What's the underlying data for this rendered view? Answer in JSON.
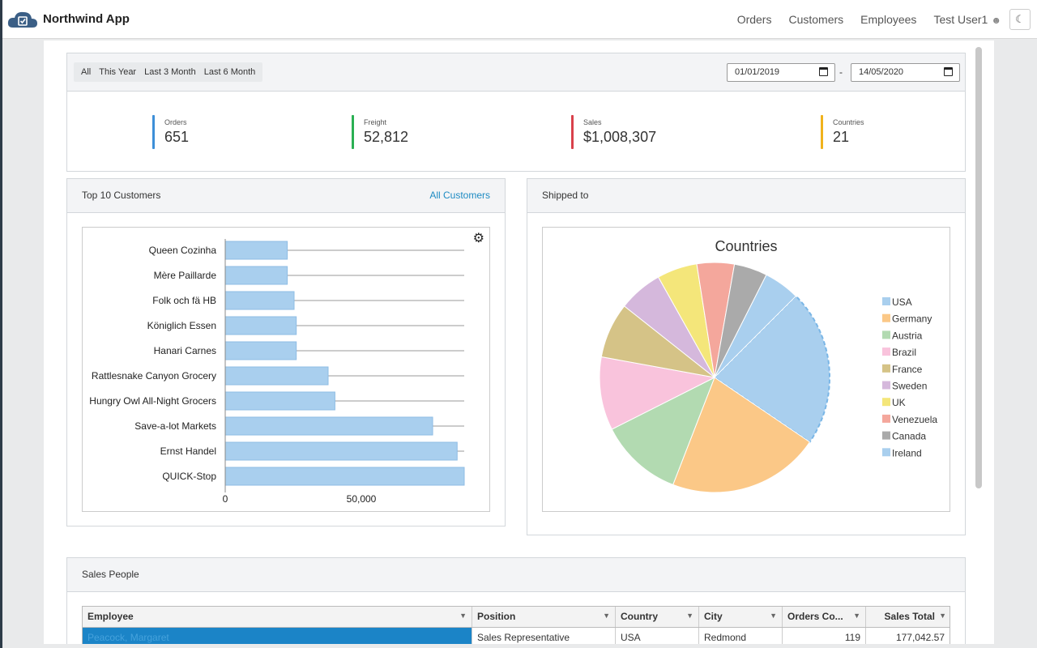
{
  "app": {
    "name": "Northwind App"
  },
  "nav": {
    "orders": "Orders",
    "customers": "Customers",
    "employees": "Employees",
    "user": "Test User1"
  },
  "filters": {
    "ranges": [
      "All",
      "This Year",
      "Last 3 Month",
      "Last 6 Month"
    ],
    "date_from": "01/01/2019",
    "date_to": "14/05/2020",
    "separator": "-"
  },
  "stats": [
    {
      "label": "Orders",
      "value": "651",
      "color": "#3d8fd8"
    },
    {
      "label": "Freight",
      "value": "52,812",
      "color": "#2bb053"
    },
    {
      "label": "Sales",
      "value": "$1,008,307",
      "color": "#d9414b"
    },
    {
      "label": "Countries",
      "value": "21",
      "color": "#f0b21c"
    }
  ],
  "top_customers": {
    "title": "Top 10 Customers",
    "link": "All Customers"
  },
  "shipped": {
    "title": "Shipped to"
  },
  "sales_people": {
    "title": "Sales People",
    "columns": [
      "Employee",
      "Position",
      "Country",
      "City",
      "Orders Co...",
      "Sales Total"
    ],
    "rows": [
      [
        "Peacock, Margaret",
        "Sales Representative",
        "USA",
        "Redmond",
        "119",
        "177,042.57"
      ]
    ]
  },
  "chart_data": [
    {
      "type": "bar",
      "orientation": "horizontal",
      "categories": [
        "Queen Cozinha",
        "Mère Paillarde",
        "Folk och fä HB",
        "Königlich Essen",
        "Hanari Carnes",
        "Rattlesnake Canyon Grocery",
        "Hungry Owl All-Night Grocers",
        "Save-a-lot Markets",
        "Ernst Handel",
        "QUICK-Stop"
      ],
      "values": [
        22800,
        22800,
        25300,
        26100,
        26100,
        37800,
        40300,
        76200,
        85200,
        87800
      ],
      "xlim": [
        0,
        87800
      ],
      "xticks": [
        "0",
        "50,000"
      ],
      "color": "#a9cfee",
      "grid": true
    },
    {
      "type": "pie",
      "title": "Countries",
      "labels": [
        "USA",
        "Germany",
        "Austria",
        "Brazil",
        "France",
        "Sweden",
        "UK",
        "Venezuela",
        "Canada",
        "Ireland"
      ],
      "values": [
        113,
        110,
        60,
        53,
        40,
        32,
        29,
        27,
        24,
        26
      ],
      "colors": [
        "#a9cfee",
        "#fbc887",
        "#b2dab1",
        "#f9c3dc",
        "#d5c387",
        "#d5b8dc",
        "#f4e67a",
        "#f4a79c",
        "#aaaaaa",
        "#a9cfee"
      ],
      "legend": "right",
      "highlighted": "USA"
    }
  ]
}
